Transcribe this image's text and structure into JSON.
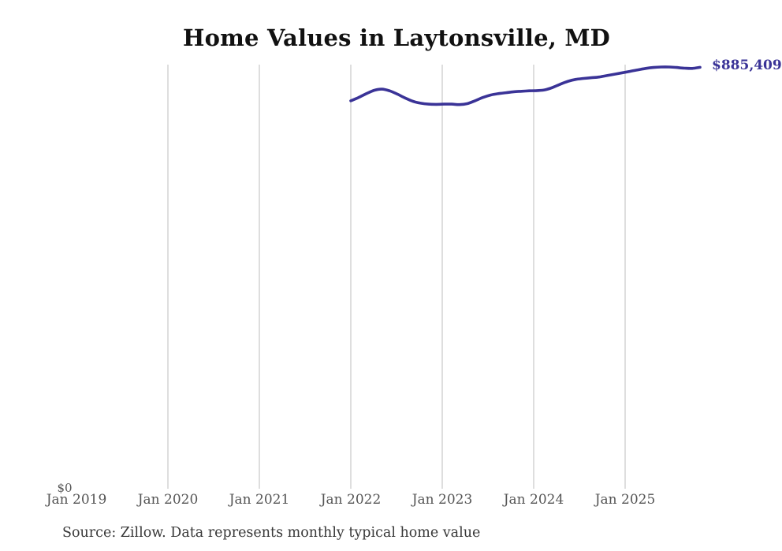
{
  "title": "Home Values in Laytonsville, MD",
  "annotations": {
    "end_value_label": "$885,409",
    "y_zero_label": "$0"
  },
  "source_note": "Source: Zillow. Data represents monthly typical home value",
  "colors": {
    "line": "#3a3397",
    "grid": "#cccccc",
    "axis_text": "#555555",
    "title_text": "#111111",
    "source_text": "#383838",
    "background": "#ffffff"
  },
  "chart_data": {
    "type": "line",
    "title": "Home Values in Laytonsville, MD",
    "xlabel": "",
    "ylabel": "",
    "series_name": "Typical home value (monthly, USD)",
    "x": [
      "2022-01",
      "2022-02",
      "2022-03",
      "2022-04",
      "2022-05",
      "2022-06",
      "2022-07",
      "2022-08",
      "2022-09",
      "2022-10",
      "2022-11",
      "2022-12",
      "2023-01",
      "2023-02",
      "2023-03",
      "2023-04",
      "2023-05",
      "2023-06",
      "2023-07",
      "2023-08",
      "2023-09",
      "2023-10",
      "2023-11",
      "2023-12",
      "2024-01",
      "2024-02",
      "2024-03",
      "2024-04",
      "2024-05",
      "2024-06",
      "2024-07",
      "2024-08",
      "2024-09",
      "2024-10",
      "2024-11",
      "2024-12",
      "2025-01",
      "2025-02",
      "2025-03",
      "2025-04",
      "2025-05",
      "2025-06",
      "2025-07",
      "2025-08",
      "2025-09",
      "2025-10"
    ],
    "values": [
      815000,
      822000,
      830000,
      837000,
      839500,
      836000,
      829000,
      821000,
      814000,
      810000,
      808000,
      807500,
      808000,
      808000,
      807000,
      809000,
      815000,
      822000,
      827000,
      830000,
      832000,
      834000,
      835000,
      836000,
      836500,
      838000,
      843000,
      850000,
      856000,
      860000,
      862000,
      863500,
      865000,
      868000,
      871000,
      874000,
      877000,
      880000,
      883000,
      885000,
      886000,
      886000,
      885000,
      883500,
      883000,
      885409
    ],
    "last_value": 885409,
    "end_annotation": "$885,409",
    "x_tick_labels": [
      "Jan 2019",
      "Jan 2020",
      "Jan 2021",
      "Jan 2022",
      "Jan 2023",
      "Jan 2024",
      "Jan 2025"
    ],
    "y_tick_labels": [
      "$0"
    ],
    "ylim": [
      0,
      891000
    ],
    "grid": "vertical-only",
    "legend": "none"
  }
}
